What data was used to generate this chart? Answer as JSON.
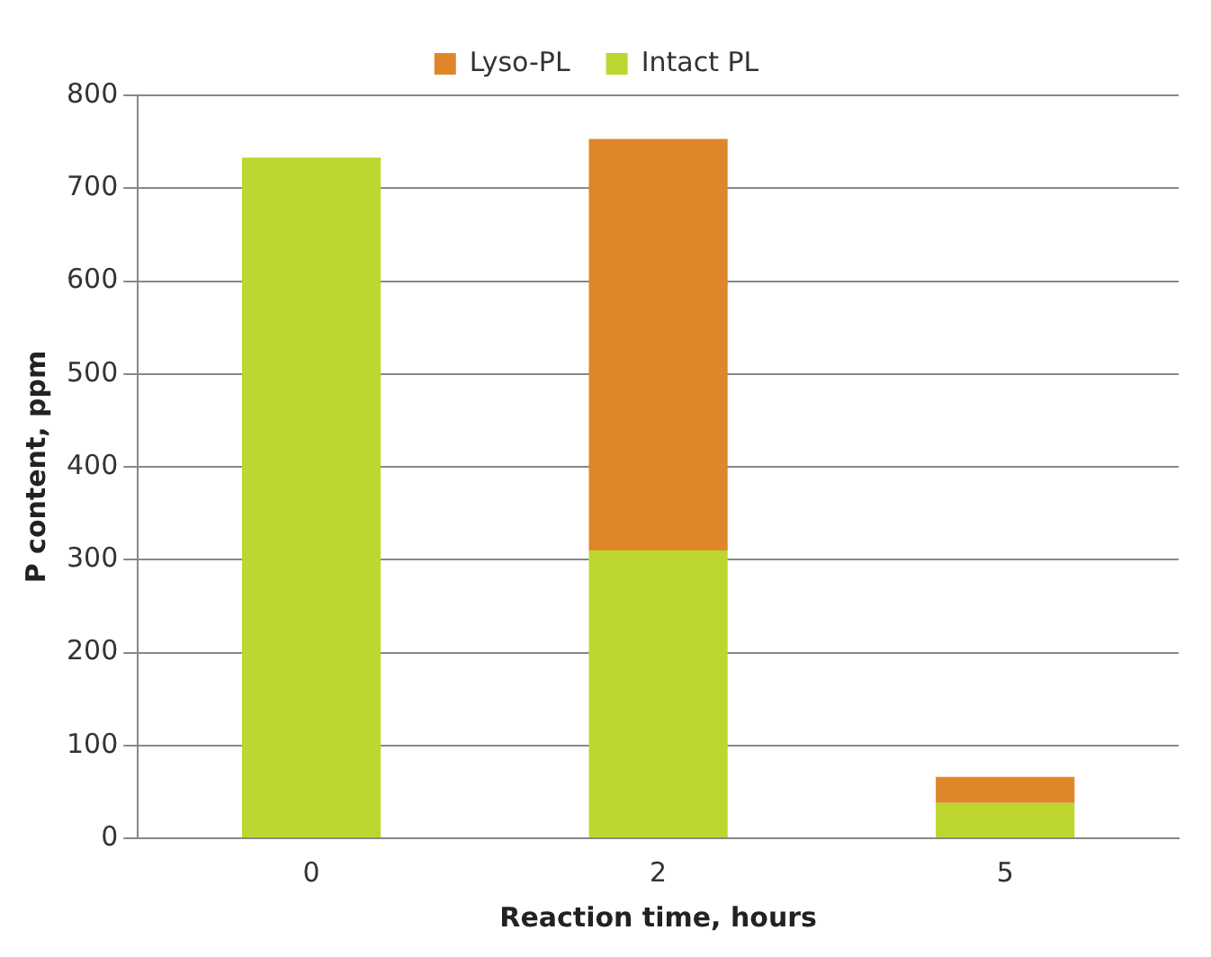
{
  "chart_data": {
    "type": "bar",
    "xlabel": "Reaction time, hours",
    "ylabel": "P content, ppm",
    "categories": [
      "0",
      "2",
      "5"
    ],
    "stacked": true,
    "series": [
      {
        "name": "Intact PL",
        "color": "#bdd630",
        "values": [
          733,
          310,
          38
        ]
      },
      {
        "name": "Lyso-PL",
        "color": "#e0862a",
        "values": [
          0,
          443,
          28
        ]
      }
    ],
    "ylim": [
      0,
      800
    ],
    "yticks": [
      0,
      100,
      200,
      300,
      400,
      500,
      600,
      700,
      800
    ],
    "grid": "y",
    "legend": "top"
  }
}
